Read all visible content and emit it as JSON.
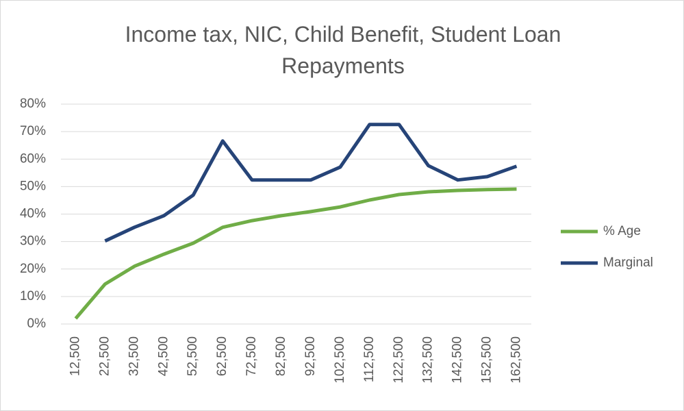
{
  "chart_data": {
    "type": "line",
    "title": "Income tax, NIC, Child Benefit, Student Loan Repayments",
    "categories": [
      "12,500",
      "22,500",
      "32,500",
      "42,500",
      "52,500",
      "62,500",
      "72,500",
      "82,500",
      "92,500",
      "102,500",
      "112,500",
      "122,500",
      "132,500",
      "142,500",
      "152,500",
      "162,500"
    ],
    "series": [
      {
        "name": "% Age",
        "color": "#70ad47",
        "values": [
          2,
          14.5,
          21,
          25.4,
          29.4,
          35.2,
          37.6,
          39.4,
          40.9,
          42.6,
          45.1,
          47.1,
          48.1,
          48.6,
          48.9,
          49.1
        ]
      },
      {
        "name": "Marginal",
        "color": "#264478",
        "values": [
          null,
          30.2,
          35.2,
          39.4,
          46.9,
          66.6,
          52.4,
          52.4,
          52.4,
          57.1,
          72.6,
          72.6,
          57.6,
          52.4,
          53.6,
          57.4
        ]
      }
    ],
    "ylim": [
      0,
      80
    ],
    "yticks": [
      {
        "value": 0,
        "label": "0%"
      },
      {
        "value": 10,
        "label": "10%"
      },
      {
        "value": 20,
        "label": "20%"
      },
      {
        "value": 30,
        "label": "30%"
      },
      {
        "value": 40,
        "label": "40%"
      },
      {
        "value": 50,
        "label": "50%"
      },
      {
        "value": 60,
        "label": "60%"
      },
      {
        "value": 70,
        "label": "70%"
      },
      {
        "value": 80,
        "label": "80%"
      }
    ],
    "grid": true,
    "legend": "right"
  }
}
